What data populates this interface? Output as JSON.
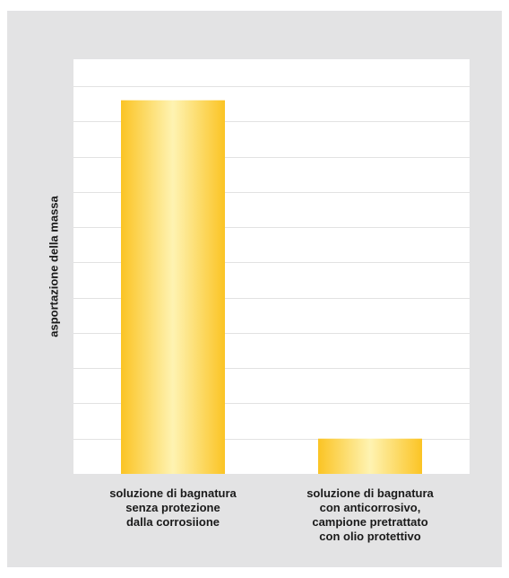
{
  "chart_data": {
    "type": "bar",
    "title": "",
    "ylabel": "asportazione della massa",
    "xlabel": "",
    "categories": [
      [
        "soluzione di bagnatura",
        "senza protezione",
        "dalla corrosiione"
      ],
      [
        "soluzione di bagnatura",
        "con anticorrosivo,",
        "campione pretrattato",
        "con olio protettivo"
      ]
    ],
    "values": [
      10.6,
      1.0
    ],
    "ylim": [
      0,
      11
    ],
    "ytick_count": 11,
    "tick_labels_shown": false,
    "grid": true,
    "bar_gradient": {
      "edge": "#fbc424",
      "center": "#fef3b2"
    },
    "grid_color": "#e2e2e2"
  }
}
